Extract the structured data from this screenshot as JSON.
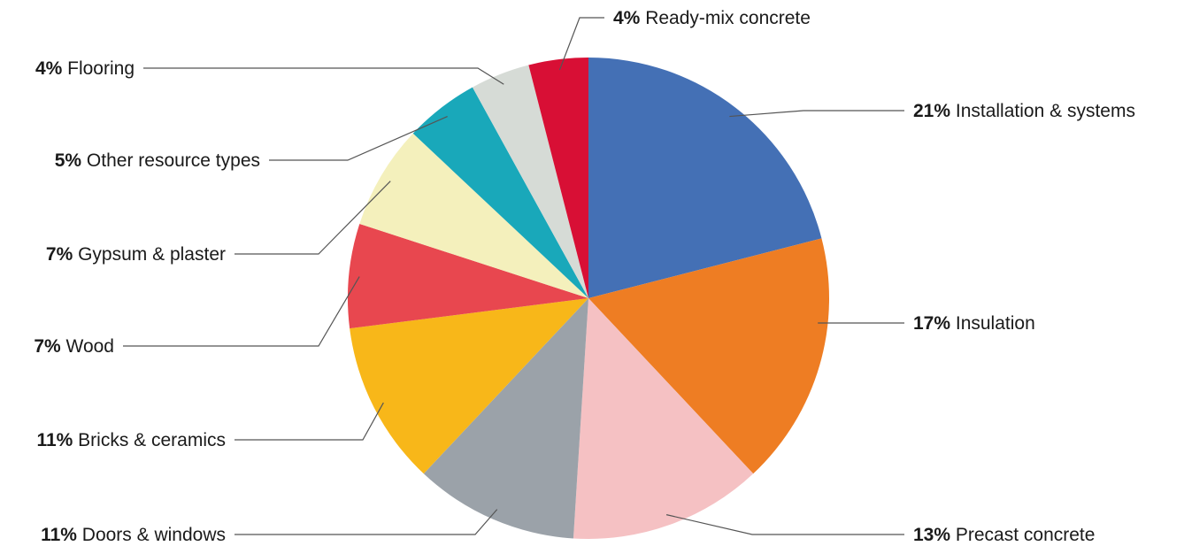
{
  "chart_data": {
    "type": "pie",
    "start_angle_deg": 0,
    "direction": "clockwise",
    "title": "",
    "slices": [
      {
        "pct_label": "21%",
        "name": "Installation & systems",
        "value": 21,
        "color": "#4470b5"
      },
      {
        "pct_label": "17%",
        "name": "Insulation",
        "value": 17,
        "color": "#ee7d23"
      },
      {
        "pct_label": "13%",
        "name": "Precast concrete",
        "value": 13,
        "color": "#f5c1c3"
      },
      {
        "pct_label": "11%",
        "name": "Doors & windows",
        "value": 11,
        "color": "#9ba2a9"
      },
      {
        "pct_label": "11%",
        "name": "Bricks & ceramics",
        "value": 11,
        "color": "#f8b719"
      },
      {
        "pct_label": "7%",
        "name": "Wood",
        "value": 7,
        "color": "#e8474f"
      },
      {
        "pct_label": "7%",
        "name": "Gypsum & plaster",
        "value": 7,
        "color": "#f4f0bc"
      },
      {
        "pct_label": "5%",
        "name": "Other resource types",
        "value": 5,
        "color": "#19a8ba"
      },
      {
        "pct_label": "4%",
        "name": "Flooring",
        "value": 4,
        "color": "#d6dbd6"
      },
      {
        "pct_label": "4%",
        "name": "Ready-mix concrete",
        "value": 4,
        "color": "#d80f35"
      }
    ]
  }
}
